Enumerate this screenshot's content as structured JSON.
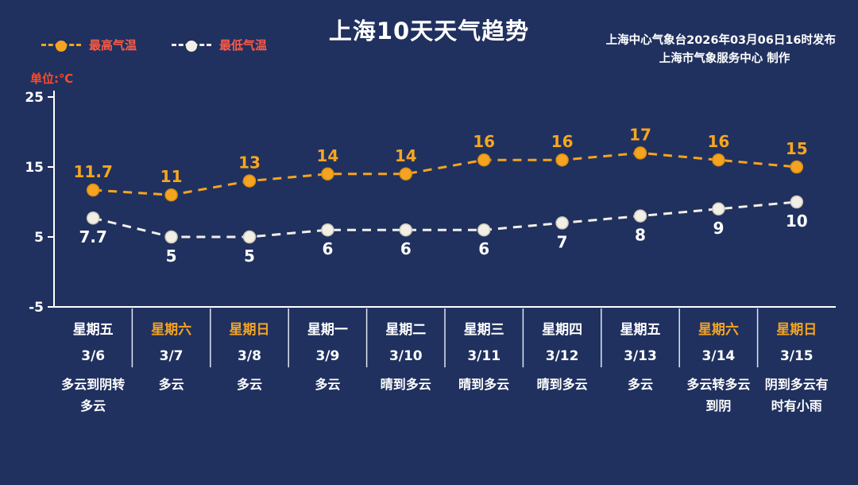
{
  "header": {
    "title": "上海10天天气趋势",
    "source_line1": "上海中心气象台2026年03月06日16时发布",
    "source_line2": "上海市气象服务中心  制作",
    "unit_label": "单位:℃"
  },
  "chart_data": {
    "type": "line",
    "title": "上海10天天气趋势",
    "ylim": [
      -5,
      25
    ],
    "yticks": [
      25,
      15,
      5,
      -5
    ],
    "grid": false,
    "legend_position": "top-left",
    "series": [
      {
        "name": "最高气温",
        "color": "#f5a421",
        "label_color": "#f7a61f",
        "values": [
          11.7,
          11,
          13,
          14,
          14,
          16,
          16,
          17,
          16,
          15
        ]
      },
      {
        "name": "最低气温",
        "color": "#f2efe7",
        "label_color": "#ffffff",
        "values": [
          7.7,
          5,
          5,
          6,
          6,
          6,
          7,
          8,
          9,
          10
        ]
      }
    ],
    "days": [
      {
        "week": "星期五",
        "date": "3/6",
        "weather": "多云到阴转多云",
        "weekend": false
      },
      {
        "week": "星期六",
        "date": "3/7",
        "weather": "多云",
        "weekend": true
      },
      {
        "week": "星期日",
        "date": "3/8",
        "weather": "多云",
        "weekend": true
      },
      {
        "week": "星期一",
        "date": "3/9",
        "weather": "多云",
        "weekend": false
      },
      {
        "week": "星期二",
        "date": "3/10",
        "weather": "晴到多云",
        "weekend": false
      },
      {
        "week": "星期三",
        "date": "3/11",
        "weather": "晴到多云",
        "weekend": false
      },
      {
        "week": "星期四",
        "date": "3/12",
        "weather": "晴到多云",
        "weekend": false
      },
      {
        "week": "星期五",
        "date": "3/13",
        "weather": "多云",
        "weekend": false
      },
      {
        "week": "星期六",
        "date": "3/14",
        "weather": "多云转多云到阴",
        "weekend": true
      },
      {
        "week": "星期日",
        "date": "3/15",
        "weather": "阴到多云有时有小雨",
        "weekend": true
      }
    ],
    "colors": {
      "background": "#20315f",
      "axis": "#ffffff",
      "separator": "#dfe5f2",
      "weekend_text": "#f5a421",
      "weekday_text": "#ffffff",
      "legend_label": "#ff5a45"
    }
  }
}
